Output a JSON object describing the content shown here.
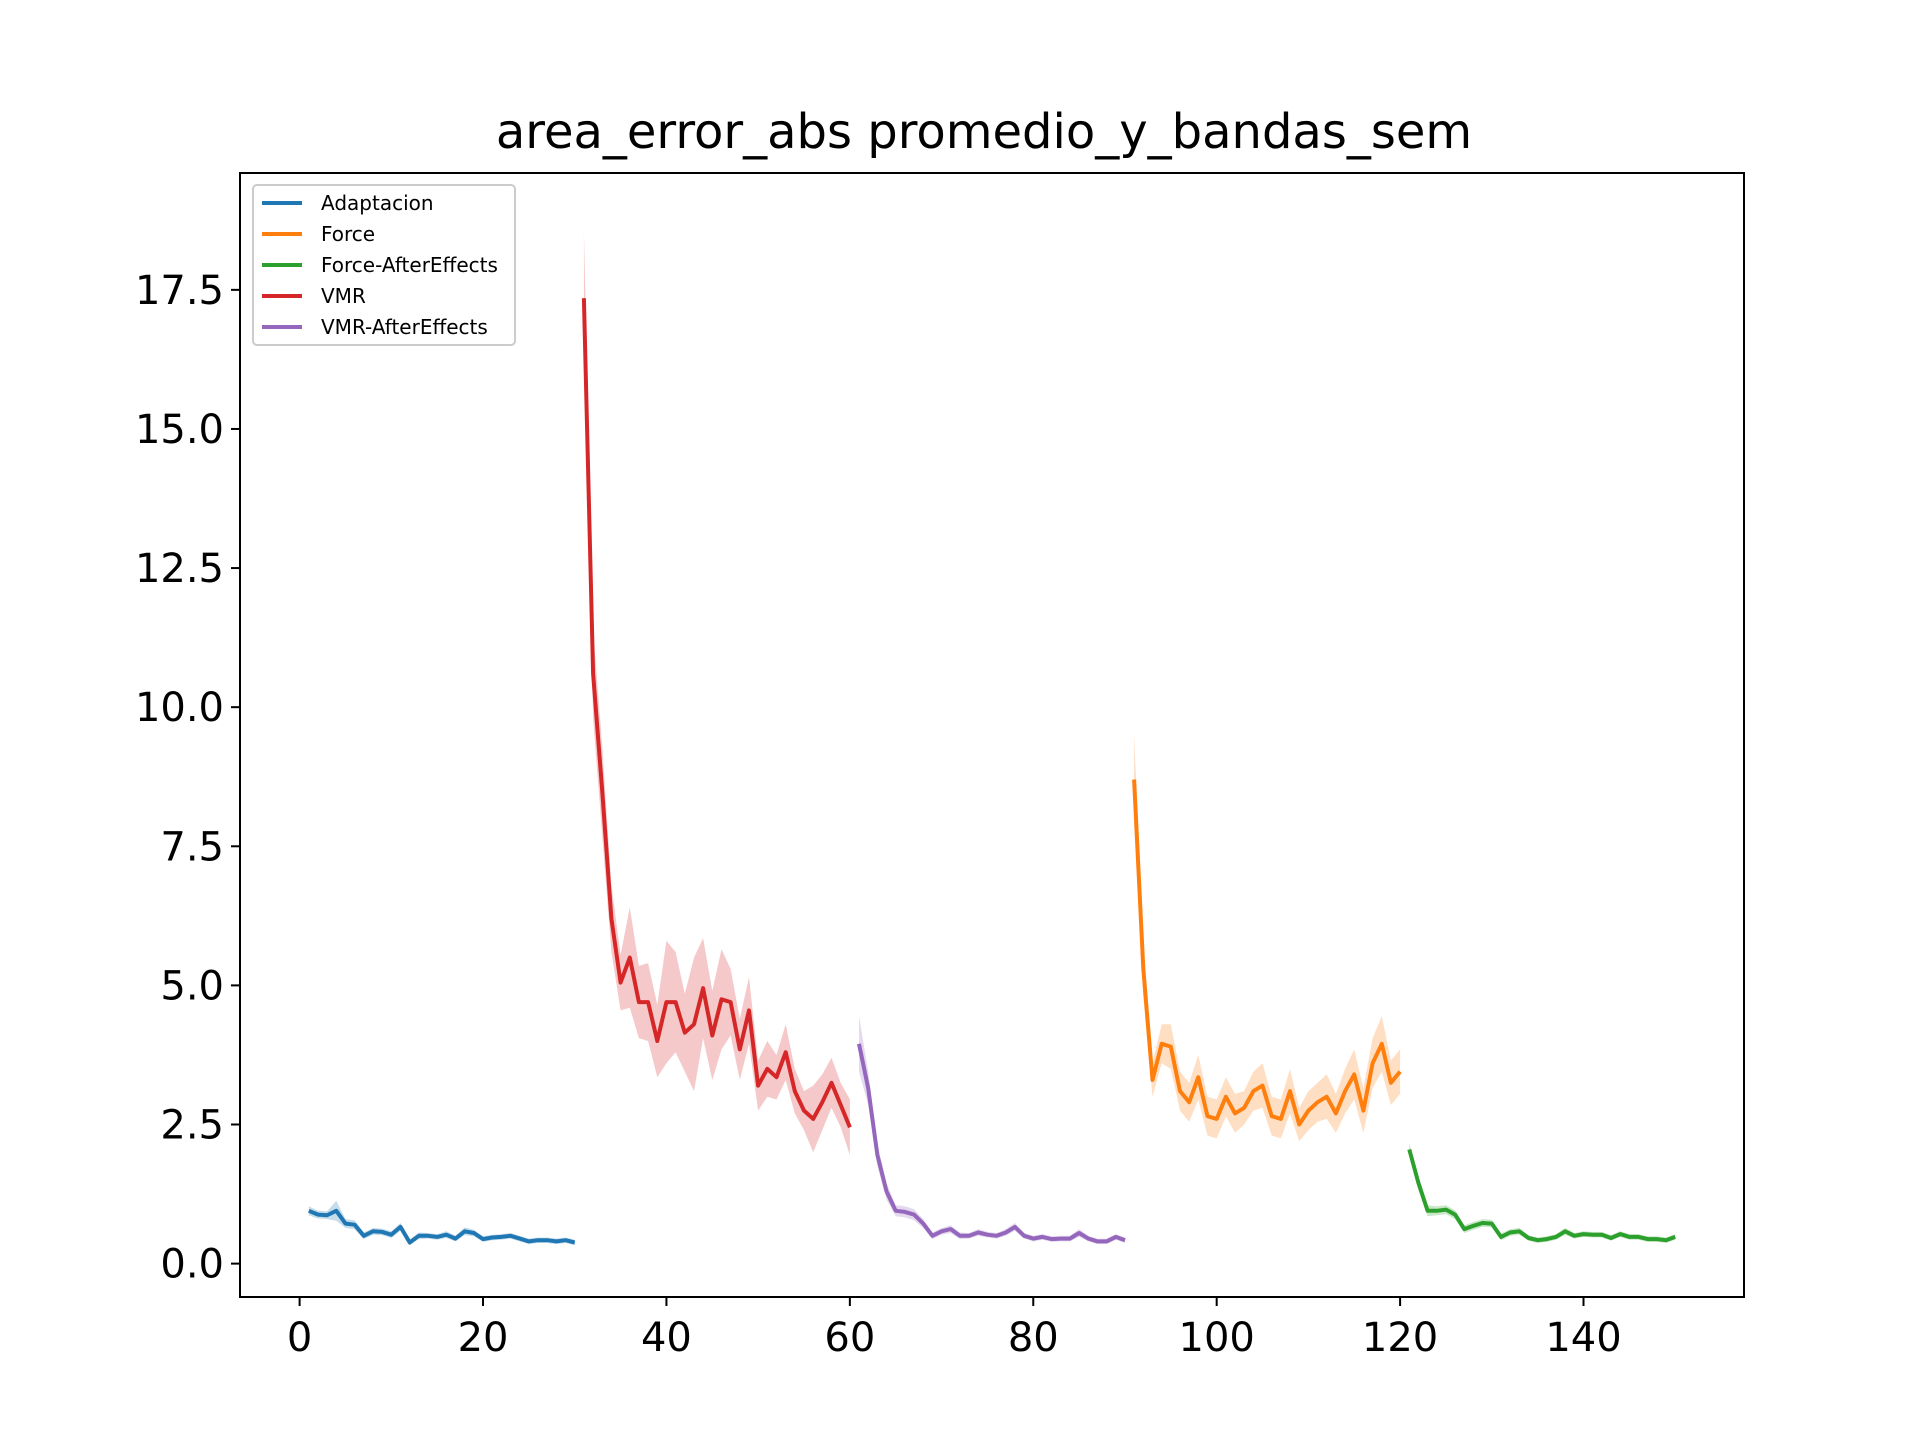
{
  "chart_data": {
    "type": "line",
    "title": "area_error_abs promedio_y_bandas_sem",
    "xlabel": "",
    "ylabel": "",
    "xlim": [
      -6.5,
      157.5
    ],
    "ylim": [
      -0.6,
      19.6
    ],
    "xticks": [
      0,
      20,
      40,
      60,
      80,
      100,
      120,
      140
    ],
    "xtick_labels": [
      "0",
      "20",
      "40",
      "60",
      "80",
      "100",
      "120",
      "140"
    ],
    "yticks": [
      0.0,
      2.5,
      5.0,
      7.5,
      10.0,
      12.5,
      15.0,
      17.5
    ],
    "ytick_labels": [
      "0.0",
      "2.5",
      "5.0",
      "7.5",
      "10.0",
      "12.5",
      "15.0",
      "17.5"
    ],
    "grid": false,
    "legend_position": "top-left",
    "series": [
      {
        "name": "Adaptacion",
        "color": "#1f77b4",
        "x": [
          1,
          2,
          3,
          4,
          5,
          6,
          7,
          8,
          9,
          10,
          11,
          12,
          13,
          14,
          15,
          16,
          17,
          18,
          19,
          20,
          21,
          22,
          23,
          24,
          25,
          26,
          27,
          28,
          29,
          30
        ],
        "y": [
          0.95,
          0.88,
          0.87,
          0.95,
          0.72,
          0.7,
          0.5,
          0.58,
          0.57,
          0.52,
          0.66,
          0.38,
          0.5,
          0.5,
          0.48,
          0.52,
          0.45,
          0.58,
          0.55,
          0.44,
          0.47,
          0.48,
          0.5,
          0.45,
          0.4,
          0.42,
          0.42,
          0.4,
          0.42,
          0.38
        ],
        "sem": [
          0.08,
          0.07,
          0.07,
          0.18,
          0.08,
          0.08,
          0.06,
          0.06,
          0.06,
          0.06,
          0.07,
          0.05,
          0.06,
          0.05,
          0.05,
          0.06,
          0.05,
          0.07,
          0.06,
          0.05,
          0.05,
          0.05,
          0.05,
          0.05,
          0.05,
          0.05,
          0.05,
          0.05,
          0.05,
          0.05
        ]
      },
      {
        "name": "Force",
        "color": "#ff7f0e",
        "x": [
          91,
          92,
          93,
          94,
          95,
          96,
          97,
          98,
          99,
          100,
          101,
          102,
          103,
          104,
          105,
          106,
          107,
          108,
          109,
          110,
          111,
          112,
          113,
          114,
          115,
          116,
          117,
          118,
          119,
          120
        ],
        "y": [
          8.7,
          5.3,
          3.3,
          3.95,
          3.9,
          3.1,
          2.9,
          3.35,
          2.65,
          2.6,
          3.0,
          2.7,
          2.8,
          3.1,
          3.2,
          2.65,
          2.6,
          3.1,
          2.5,
          2.75,
          2.9,
          3.0,
          2.7,
          3.1,
          3.4,
          2.75,
          3.6,
          3.95,
          3.25,
          3.45
        ],
        "sem": [
          0.8,
          0.5,
          0.3,
          0.35,
          0.4,
          0.35,
          0.35,
          0.4,
          0.35,
          0.35,
          0.35,
          0.35,
          0.3,
          0.35,
          0.4,
          0.35,
          0.35,
          0.4,
          0.3,
          0.35,
          0.35,
          0.4,
          0.35,
          0.4,
          0.45,
          0.4,
          0.45,
          0.5,
          0.4,
          0.4
        ]
      },
      {
        "name": "Force-AfterEffects",
        "color": "#2ca02c",
        "x": [
          121,
          122,
          123,
          124,
          125,
          126,
          127,
          128,
          129,
          130,
          131,
          132,
          133,
          134,
          135,
          136,
          137,
          138,
          139,
          140,
          141,
          142,
          143,
          144,
          145,
          146,
          147,
          148,
          149,
          150
        ],
        "y": [
          2.05,
          1.45,
          0.95,
          0.95,
          0.97,
          0.88,
          0.62,
          0.68,
          0.73,
          0.72,
          0.48,
          0.56,
          0.58,
          0.46,
          0.42,
          0.44,
          0.48,
          0.58,
          0.5,
          0.53,
          0.52,
          0.52,
          0.46,
          0.53,
          0.48,
          0.48,
          0.44,
          0.44,
          0.42,
          0.48
        ],
        "sem": [
          0.12,
          0.12,
          0.1,
          0.08,
          0.08,
          0.08,
          0.07,
          0.07,
          0.07,
          0.07,
          0.06,
          0.06,
          0.06,
          0.05,
          0.05,
          0.05,
          0.05,
          0.06,
          0.05,
          0.05,
          0.05,
          0.05,
          0.05,
          0.05,
          0.05,
          0.05,
          0.05,
          0.05,
          0.05,
          0.05
        ]
      },
      {
        "name": "VMR",
        "color": "#d62728",
        "x": [
          31,
          32,
          33,
          34,
          35,
          36,
          37,
          38,
          39,
          40,
          41,
          42,
          43,
          44,
          45,
          46,
          47,
          48,
          49,
          50,
          51,
          52,
          53,
          54,
          55,
          56,
          57,
          58,
          59,
          60
        ],
        "y": [
          17.35,
          10.6,
          8.5,
          6.2,
          5.05,
          5.5,
          4.7,
          4.7,
          4.0,
          4.7,
          4.7,
          4.15,
          4.3,
          4.95,
          4.1,
          4.75,
          4.7,
          3.85,
          4.55,
          3.2,
          3.5,
          3.35,
          3.8,
          3.1,
          2.75,
          2.6,
          2.9,
          3.25,
          2.85,
          2.45
        ],
        "sem": [
          1.2,
          0.8,
          0.8,
          0.6,
          0.5,
          0.9,
          0.65,
          0.7,
          0.65,
          1.1,
          0.9,
          0.7,
          1.2,
          0.9,
          0.8,
          0.9,
          0.6,
          0.55,
          0.6,
          0.45,
          0.5,
          0.4,
          0.5,
          0.4,
          0.35,
          0.6,
          0.5,
          0.45,
          0.4,
          0.5
        ]
      },
      {
        "name": "VMR-AfterEffects",
        "color": "#9467bd",
        "x": [
          61,
          62,
          63,
          64,
          65,
          66,
          67,
          68,
          69,
          70,
          71,
          72,
          73,
          74,
          75,
          76,
          77,
          78,
          79,
          80,
          81,
          82,
          83,
          84,
          85,
          86,
          87,
          88,
          89,
          90
        ],
        "y": [
          3.95,
          3.15,
          1.95,
          1.3,
          0.95,
          0.93,
          0.88,
          0.72,
          0.5,
          0.58,
          0.62,
          0.5,
          0.5,
          0.56,
          0.52,
          0.5,
          0.56,
          0.66,
          0.5,
          0.45,
          0.48,
          0.44,
          0.45,
          0.45,
          0.55,
          0.45,
          0.4,
          0.4,
          0.48,
          0.42
        ],
        "sem": [
          0.5,
          0.3,
          0.2,
          0.15,
          0.1,
          0.1,
          0.1,
          0.08,
          0.06,
          0.06,
          0.07,
          0.06,
          0.05,
          0.06,
          0.05,
          0.05,
          0.06,
          0.07,
          0.05,
          0.05,
          0.05,
          0.05,
          0.05,
          0.05,
          0.07,
          0.05,
          0.05,
          0.05,
          0.05,
          0.05
        ]
      }
    ]
  }
}
